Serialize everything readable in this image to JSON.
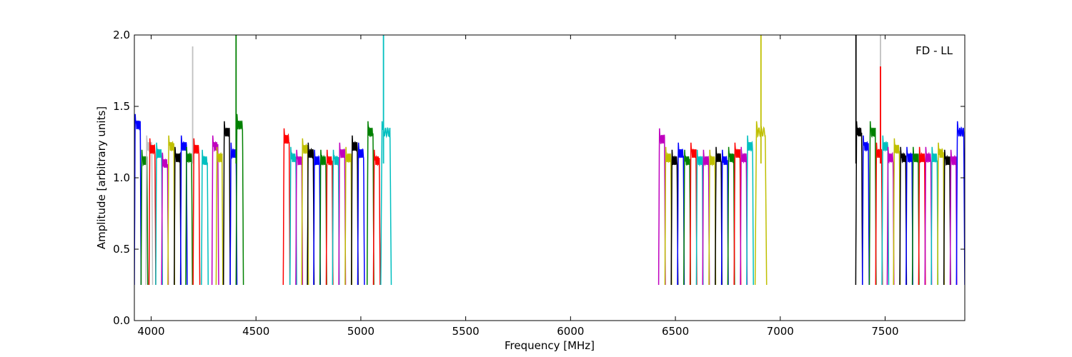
{
  "chart_data": {
    "type": "line",
    "title": "",
    "annotation": "FD - LL",
    "xlabel": "Frequency [MHz]",
    "ylabel": "Amplitude [arbitrary units]",
    "xlim": [
      3920,
      7880
    ],
    "ylim": [
      0.0,
      2.0
    ],
    "xticks": [
      4000,
      4500,
      5000,
      5500,
      6000,
      6500,
      7000,
      7500
    ],
    "yticks": [
      0.0,
      0.5,
      1.0,
      1.5,
      2.0
    ],
    "xtick_labels": [
      "4000",
      "4500",
      "5000",
      "5500",
      "6000",
      "6500",
      "7000",
      "7500"
    ],
    "ytick_labels": [
      "0.0",
      "0.5",
      "1.0",
      "1.5",
      "2.0"
    ],
    "grid": false,
    "legend": "none",
    "colors": [
      "#0000ff",
      "#008000",
      "#ff0000",
      "#00bfbf",
      "#bf00bf",
      "#bfbf00",
      "#000000",
      "#c0c0c0"
    ],
    "band_description": "Overlapping spectral window bandpasses, each dips to ~0.25 at edges and plateaus ~1.2",
    "windows": [
      {
        "start": 3920,
        "width": 32,
        "level": 1.45,
        "color": "#0000ff"
      },
      {
        "start": 3952,
        "width": 32,
        "level": 1.2,
        "color": "#008000"
      },
      {
        "start": 3975,
        "width": 32,
        "level": 1.3,
        "color": "#c0c0c0"
      },
      {
        "start": 3990,
        "width": 32,
        "level": 1.28,
        "color": "#ff0000"
      },
      {
        "start": 4022,
        "width": 32,
        "level": 1.25,
        "color": "#00bfbf"
      },
      {
        "start": 4050,
        "width": 32,
        "level": 1.18,
        "color": "#bf00bf"
      },
      {
        "start": 4080,
        "width": 32,
        "level": 1.3,
        "color": "#bfbf00"
      },
      {
        "start": 4110,
        "width": 32,
        "level": 1.22,
        "color": "#000000"
      },
      {
        "start": 4140,
        "width": 32,
        "level": 1.3,
        "color": "#0000ff"
      },
      {
        "start": 4165,
        "width": 32,
        "level": 1.22,
        "color": "#008000"
      },
      {
        "start": 4200,
        "width": 32,
        "level": 1.28,
        "color": "#ff0000"
      },
      {
        "start": 4240,
        "width": 32,
        "level": 1.2,
        "color": "#00bfbf"
      },
      {
        "start": 4290,
        "width": 32,
        "level": 1.3,
        "color": "#bf00bf"
      },
      {
        "start": 4310,
        "width": 32,
        "level": 1.22,
        "color": "#bfbf00"
      },
      {
        "start": 4345,
        "width": 32,
        "level": 1.4,
        "color": "#000000"
      },
      {
        "start": 4377,
        "width": 32,
        "level": 1.25,
        "color": "#0000ff"
      },
      {
        "start": 4405,
        "width": 35,
        "level": 1.45,
        "color": "#008000"
      },
      {
        "start": 4630,
        "width": 32,
        "level": 1.35,
        "color": "#ff0000"
      },
      {
        "start": 4662,
        "width": 32,
        "level": 1.22,
        "color": "#00bfbf"
      },
      {
        "start": 4690,
        "width": 32,
        "level": 1.2,
        "color": "#bf00bf"
      },
      {
        "start": 4718,
        "width": 32,
        "level": 1.28,
        "color": "#bfbf00"
      },
      {
        "start": 4745,
        "width": 32,
        "level": 1.25,
        "color": "#000000"
      },
      {
        "start": 4775,
        "width": 32,
        "level": 1.2,
        "color": "#0000ff"
      },
      {
        "start": 4805,
        "width": 32,
        "level": 1.2,
        "color": "#008000"
      },
      {
        "start": 4835,
        "width": 32,
        "level": 1.2,
        "color": "#ff0000"
      },
      {
        "start": 4865,
        "width": 32,
        "level": 1.2,
        "color": "#00bfbf"
      },
      {
        "start": 4895,
        "width": 32,
        "level": 1.25,
        "color": "#bf00bf"
      },
      {
        "start": 4925,
        "width": 32,
        "level": 1.22,
        "color": "#bfbf00"
      },
      {
        "start": 4955,
        "width": 32,
        "level": 1.3,
        "color": "#000000"
      },
      {
        "start": 4985,
        "width": 32,
        "level": 1.25,
        "color": "#0000ff"
      },
      {
        "start": 5030,
        "width": 32,
        "level": 1.4,
        "color": "#008000"
      },
      {
        "start": 5060,
        "width": 32,
        "level": 1.2,
        "color": "#ff0000"
      },
      {
        "start": 5095,
        "width": 50,
        "level": 1.4,
        "color": "#00bfbf"
      },
      {
        "start": 6420,
        "width": 32,
        "level": 1.35,
        "color": "#bf00bf"
      },
      {
        "start": 6450,
        "width": 32,
        "level": 1.22,
        "color": "#bfbf00"
      },
      {
        "start": 6480,
        "width": 32,
        "level": 1.2,
        "color": "#000000"
      },
      {
        "start": 6510,
        "width": 32,
        "level": 1.25,
        "color": "#0000ff"
      },
      {
        "start": 6540,
        "width": 32,
        "level": 1.2,
        "color": "#008000"
      },
      {
        "start": 6570,
        "width": 32,
        "level": 1.25,
        "color": "#ff0000"
      },
      {
        "start": 6600,
        "width": 32,
        "level": 1.2,
        "color": "#00bfbf"
      },
      {
        "start": 6630,
        "width": 32,
        "level": 1.2,
        "color": "#bf00bf"
      },
      {
        "start": 6660,
        "width": 32,
        "level": 1.2,
        "color": "#bfbf00"
      },
      {
        "start": 6690,
        "width": 32,
        "level": 1.22,
        "color": "#000000"
      },
      {
        "start": 6720,
        "width": 32,
        "level": 1.2,
        "color": "#0000ff"
      },
      {
        "start": 6750,
        "width": 32,
        "level": 1.22,
        "color": "#008000"
      },
      {
        "start": 6780,
        "width": 32,
        "level": 1.25,
        "color": "#ff0000"
      },
      {
        "start": 6810,
        "width": 32,
        "level": 1.22,
        "color": "#bf00bf"
      },
      {
        "start": 6840,
        "width": 32,
        "level": 1.3,
        "color": "#00bfbf"
      },
      {
        "start": 6880,
        "width": 55,
        "level": 1.4,
        "color": "#bfbf00"
      },
      {
        "start": 7360,
        "width": 32,
        "level": 1.4,
        "color": "#000000"
      },
      {
        "start": 7392,
        "width": 32,
        "level": 1.3,
        "color": "#0000ff"
      },
      {
        "start": 7425,
        "width": 32,
        "level": 1.4,
        "color": "#008000"
      },
      {
        "start": 7455,
        "width": 32,
        "level": 1.25,
        "color": "#ff0000"
      },
      {
        "start": 7485,
        "width": 32,
        "level": 1.3,
        "color": "#00bfbf"
      },
      {
        "start": 7510,
        "width": 32,
        "level": 1.22,
        "color": "#bf00bf"
      },
      {
        "start": 7540,
        "width": 32,
        "level": 1.28,
        "color": "#bfbf00"
      },
      {
        "start": 7570,
        "width": 32,
        "level": 1.22,
        "color": "#000000"
      },
      {
        "start": 7600,
        "width": 32,
        "level": 1.22,
        "color": "#0000ff"
      },
      {
        "start": 7630,
        "width": 32,
        "level": 1.22,
        "color": "#008000"
      },
      {
        "start": 7660,
        "width": 32,
        "level": 1.22,
        "color": "#ff0000"
      },
      {
        "start": 7690,
        "width": 32,
        "level": 1.22,
        "color": "#bf00bf"
      },
      {
        "start": 7720,
        "width": 32,
        "level": 1.22,
        "color": "#00bfbf"
      },
      {
        "start": 7750,
        "width": 32,
        "level": 1.25,
        "color": "#bfbf00"
      },
      {
        "start": 7780,
        "width": 32,
        "level": 1.2,
        "color": "#000000"
      },
      {
        "start": 7810,
        "width": 32,
        "level": 1.2,
        "color": "#bf00bf"
      },
      {
        "start": 7840,
        "width": 40,
        "level": 1.4,
        "color": "#0000ff"
      }
    ],
    "spikes": [
      {
        "x": 4198,
        "y": 1.92,
        "color": "#c0c0c0"
      },
      {
        "x": 4405,
        "y": 2.0,
        "color": "#008000"
      },
      {
        "x": 5108,
        "y": 2.0,
        "color": "#00bfbf"
      },
      {
        "x": 6908,
        "y": 2.0,
        "color": "#bfbf00"
      },
      {
        "x": 7361,
        "y": 2.0,
        "color": "#000000"
      },
      {
        "x": 7478,
        "y": 2.0,
        "color": "#c0c0c0"
      },
      {
        "x": 7478,
        "y": 1.78,
        "color": "#ff0000"
      }
    ]
  }
}
